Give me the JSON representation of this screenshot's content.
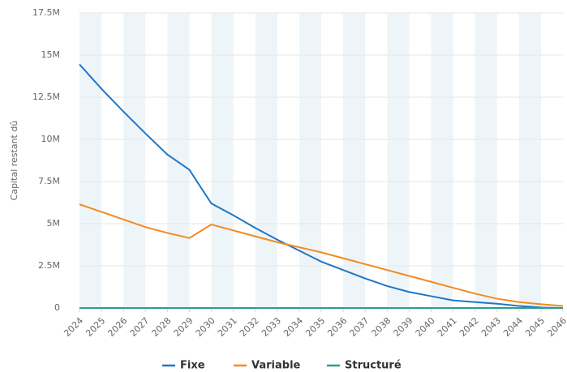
{
  "chart_data": {
    "type": "line",
    "ylabel": "Capital restant dû",
    "categories": [
      "2024",
      "2025",
      "2026",
      "2027",
      "2028",
      "2029",
      "2030",
      "2031",
      "2032",
      "2033",
      "2034",
      "2035",
      "2036",
      "2037",
      "2038",
      "2039",
      "2040",
      "2041",
      "2042",
      "2043",
      "2044",
      "2045",
      "2046"
    ],
    "series": [
      {
        "name": "Fixe",
        "color": "#1f77c4",
        "values": [
          14450000,
          13000000,
          11650000,
          10350000,
          9100000,
          8200000,
          6200000,
          5500000,
          4750000,
          4050000,
          3400000,
          2750000,
          2250000,
          1750000,
          1300000,
          950000,
          700000,
          450000,
          350000,
          250000,
          120000,
          30000,
          0
        ]
      },
      {
        "name": "Variable",
        "color": "#f28a1e",
        "values": [
          6150000,
          5700000,
          5250000,
          4800000,
          4450000,
          4150000,
          4950000,
          4600000,
          4250000,
          3900000,
          3600000,
          3300000,
          2950000,
          2600000,
          2250000,
          1900000,
          1550000,
          1200000,
          850000,
          550000,
          350000,
          220000,
          120000
        ]
      },
      {
        "name": "Structuré",
        "color": "#2a9d8f",
        "values": [
          0,
          0,
          0,
          0,
          0,
          0,
          0,
          0,
          0,
          0,
          0,
          0,
          0,
          0,
          0,
          0,
          0,
          0,
          0,
          0,
          0,
          0,
          0
        ]
      }
    ],
    "ylim": [
      0,
      17500000
    ],
    "yticks": [
      0,
      {
        "value": 2500000,
        "label": "2.5M"
      },
      {
        "value": 5000000,
        "label": "5M"
      },
      {
        "value": 7500000,
        "label": "7.5M"
      },
      {
        "value": 10000000,
        "label": "10M"
      },
      {
        "value": 12500000,
        "label": "12.5M"
      },
      {
        "value": 15000000,
        "label": "15M"
      },
      {
        "value": 17500000,
        "label": "17.5M"
      }
    ],
    "grid": true,
    "legend": "bottom"
  }
}
